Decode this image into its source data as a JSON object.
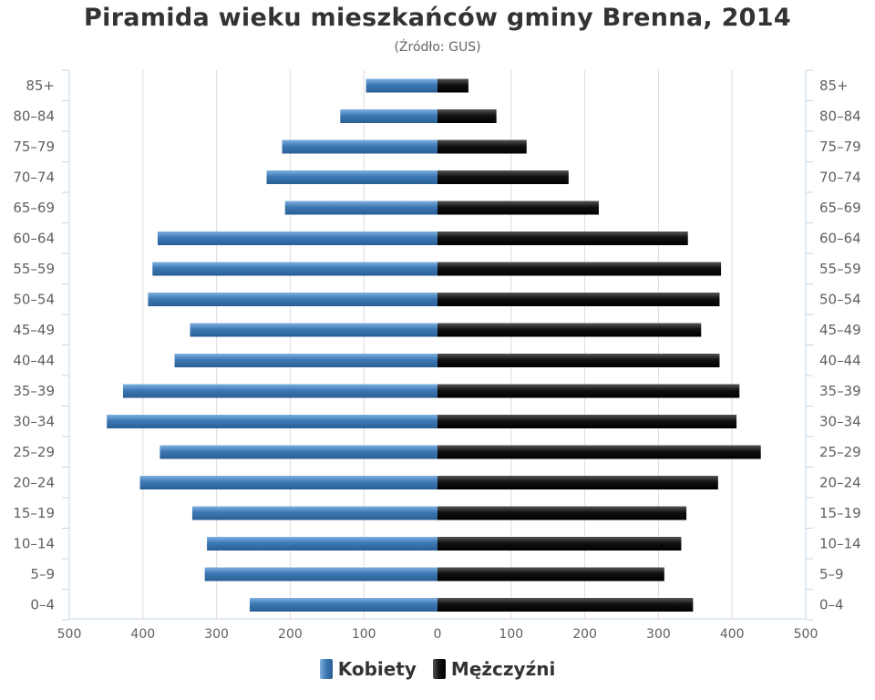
{
  "title": "Piramida wieku mieszkańców gminy Brenna, 2014",
  "subtitle": "(Źródło: GUS)",
  "colors": {
    "female": "#3d78b4",
    "female_light": "#6fa3d8",
    "male": "#111111",
    "male_light": "#4a4a4a",
    "grid": "#d8d8d8",
    "axis": "#c0d0e0"
  },
  "legend": [
    {
      "label": "Kobiety",
      "color": "#3d78b4"
    },
    {
      "label": "Mężczyźni",
      "color": "#111111"
    }
  ],
  "chart_data": {
    "type": "bar",
    "orientation": "horizontal-pyramid",
    "categories": [
      "85+",
      "80-84",
      "75-79",
      "70-74",
      "65-69",
      "60-64",
      "55-59",
      "50-54",
      "45-49",
      "40-44",
      "35-39",
      "30-34",
      "25-29",
      "20-24",
      "15-19",
      "10-14",
      "5-9",
      "0-4"
    ],
    "series": [
      {
        "name": "Kobiety",
        "side": "left",
        "values": [
          97,
          132,
          211,
          232,
          207,
          380,
          387,
          393,
          336,
          357,
          427,
          449,
          377,
          404,
          333,
          313,
          316,
          255
        ]
      },
      {
        "name": "Mężczyźni",
        "side": "right",
        "values": [
          42,
          80,
          121,
          178,
          219,
          340,
          385,
          383,
          358,
          383,
          410,
          406,
          439,
          381,
          338,
          331,
          308,
          347
        ]
      }
    ],
    "xlim": [
      -500,
      500
    ],
    "xticks": [
      "500",
      "400",
      "300",
      "200",
      "100",
      "0",
      "100",
      "200",
      "300",
      "400",
      "500"
    ],
    "grid": true,
    "legend_position": "bottom-center"
  }
}
